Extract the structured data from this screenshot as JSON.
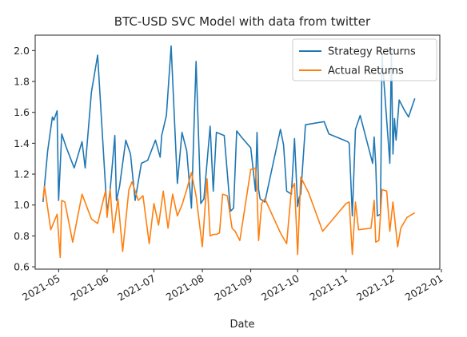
{
  "chart_data": {
    "type": "line",
    "title": "BTC-USD SVC Model with data from twitter",
    "xlabel": "Date",
    "ylabel": "",
    "xlim": [
      "2021-04-16",
      "2021-12-31"
    ],
    "ylim": [
      0.585,
      2.1
    ],
    "grid": false,
    "legend_position": "top-right",
    "x_ticks": [
      "2021-05",
      "2021-06",
      "2021-07",
      "2021-08",
      "2021-09",
      "2021-10",
      "2021-11",
      "2021-12",
      "2022-01"
    ],
    "y_ticks": [
      "0.6",
      "0.8",
      "1.0",
      "1.2",
      "1.4",
      "1.6",
      "1.8",
      "2.0"
    ],
    "series": [
      {
        "name": "Strategy Returns",
        "color": "#1f77b4",
        "x": [
          "2021-04-21",
          "2021-04-24",
          "2021-04-27",
          "2021-04-28",
          "2021-04-30",
          "2021-05-01",
          "2021-05-03",
          "2021-05-06",
          "2021-05-11",
          "2021-05-16",
          "2021-05-18",
          "2021-05-22",
          "2021-05-26",
          "2021-06-01",
          "2021-06-03",
          "2021-06-06",
          "2021-06-07",
          "2021-06-09",
          "2021-06-13",
          "2021-06-16",
          "2021-06-19",
          "2021-06-23",
          "2021-06-27",
          "2021-07-02",
          "2021-07-05",
          "2021-07-06",
          "2021-07-09",
          "2021-07-12",
          "2021-07-16",
          "2021-07-19",
          "2021-07-22",
          "2021-07-25",
          "2021-07-28",
          "2021-07-31",
          "2021-08-02",
          "2021-08-06",
          "2021-08-08",
          "2021-08-10",
          "2021-08-15",
          "2021-08-19",
          "2021-08-21",
          "2021-08-23",
          "2021-08-26",
          "2021-09-01",
          "2021-09-04",
          "2021-09-05",
          "2021-09-06",
          "2021-09-07",
          "2021-09-10",
          "2021-09-20",
          "2021-09-22",
          "2021-09-24",
          "2021-09-27",
          "2021-09-29",
          "2021-10-01",
          "2021-10-02",
          "2021-10-03",
          "2021-10-06",
          "2021-10-18",
          "2021-10-21",
          "2021-11-02",
          "2021-11-03",
          "2021-11-05",
          "2021-11-07",
          "2021-11-10",
          "2021-11-18",
          "2021-11-19",
          "2021-11-20",
          "2021-11-21",
          "2021-11-23",
          "2021-11-24",
          "2021-11-29",
          "2021-11-30",
          "2021-12-01",
          "2021-12-02",
          "2021-12-03",
          "2021-12-05",
          "2021-12-08",
          "2021-12-11",
          "2021-12-15"
        ],
        "values": [
          1.02,
          1.35,
          1.57,
          1.55,
          1.61,
          1.03,
          1.46,
          1.37,
          1.24,
          1.41,
          1.24,
          1.73,
          1.97,
          0.95,
          1.1,
          1.45,
          1.03,
          1.12,
          1.42,
          1.33,
          1.03,
          1.27,
          1.29,
          1.42,
          1.31,
          1.45,
          1.58,
          2.03,
          1.14,
          1.47,
          1.35,
          0.98,
          1.93,
          1.01,
          1.04,
          1.51,
          1.09,
          1.47,
          1.45,
          0.96,
          0.98,
          1.48,
          1.44,
          1.37,
          1.09,
          1.47,
          1.1,
          1.04,
          1.02,
          1.49,
          1.39,
          1.09,
          1.07,
          1.43,
          0.99,
          1.05,
          1.07,
          1.52,
          1.54,
          1.46,
          1.41,
          1.4,
          0.93,
          1.49,
          1.58,
          1.27,
          1.44,
          1.26,
          0.93,
          0.94,
          1.97,
          1.27,
          2.0,
          1.33,
          1.56,
          1.42,
          1.68,
          1.62,
          1.57,
          1.69
        ]
      },
      {
        "name": "Actual Returns",
        "color": "#ff7f0e",
        "x": [
          "2021-04-21",
          "2021-04-22",
          "2021-04-26",
          "2021-04-30",
          "2021-05-02",
          "2021-05-03",
          "2021-05-05",
          "2021-05-10",
          "2021-05-16",
          "2021-05-22",
          "2021-05-26",
          "2021-05-31",
          "2021-06-01",
          "2021-06-03",
          "2021-06-05",
          "2021-06-08",
          "2021-06-11",
          "2021-06-15",
          "2021-06-17",
          "2021-06-21",
          "2021-06-24",
          "2021-06-28",
          "2021-07-01",
          "2021-07-04",
          "2021-07-07",
          "2021-07-10",
          "2021-07-13",
          "2021-07-16",
          "2021-07-19",
          "2021-07-22",
          "2021-07-25",
          "2021-07-28",
          "2021-08-01",
          "2021-08-04",
          "2021-08-06",
          "2021-08-08",
          "2021-08-10",
          "2021-08-12",
          "2021-08-14",
          "2021-08-17",
          "2021-08-20",
          "2021-08-22",
          "2021-08-25",
          "2021-09-01",
          "2021-09-04",
          "2021-09-05",
          "2021-09-06",
          "2021-09-08",
          "2021-09-10",
          "2021-09-20",
          "2021-09-24",
          "2021-09-27",
          "2021-09-29",
          "2021-10-01",
          "2021-10-03",
          "2021-10-08",
          "2021-10-17",
          "2021-11-01",
          "2021-11-03",
          "2021-11-05",
          "2021-11-07",
          "2021-11-09",
          "2021-11-17",
          "2021-11-19",
          "2021-11-20",
          "2021-11-22",
          "2021-11-24",
          "2021-11-27",
          "2021-11-29",
          "2021-12-01",
          "2021-12-04",
          "2021-12-06",
          "2021-12-10",
          "2021-12-15"
        ],
        "values": [
          1.04,
          1.12,
          0.84,
          0.94,
          0.66,
          1.03,
          1.02,
          0.76,
          1.07,
          0.91,
          0.88,
          1.09,
          0.92,
          1.1,
          0.82,
          1.04,
          0.7,
          1.1,
          1.15,
          1.03,
          1.06,
          0.75,
          1.01,
          0.87,
          1.09,
          0.85,
          1.07,
          0.93,
          1.0,
          1.1,
          1.21,
          1.06,
          0.73,
          1.17,
          0.8,
          0.81,
          0.81,
          0.82,
          1.07,
          1.06,
          0.85,
          0.83,
          0.77,
          1.23,
          1.24,
          1.09,
          0.77,
          1.01,
          1.04,
          0.82,
          0.75,
          1.1,
          1.14,
          0.68,
          1.18,
          1.08,
          0.83,
          1.01,
          1.02,
          0.68,
          1.02,
          0.84,
          0.85,
          1.03,
          0.76,
          0.77,
          1.1,
          1.09,
          0.83,
          1.02,
          0.73,
          0.85,
          0.92,
          0.95
        ]
      }
    ]
  }
}
